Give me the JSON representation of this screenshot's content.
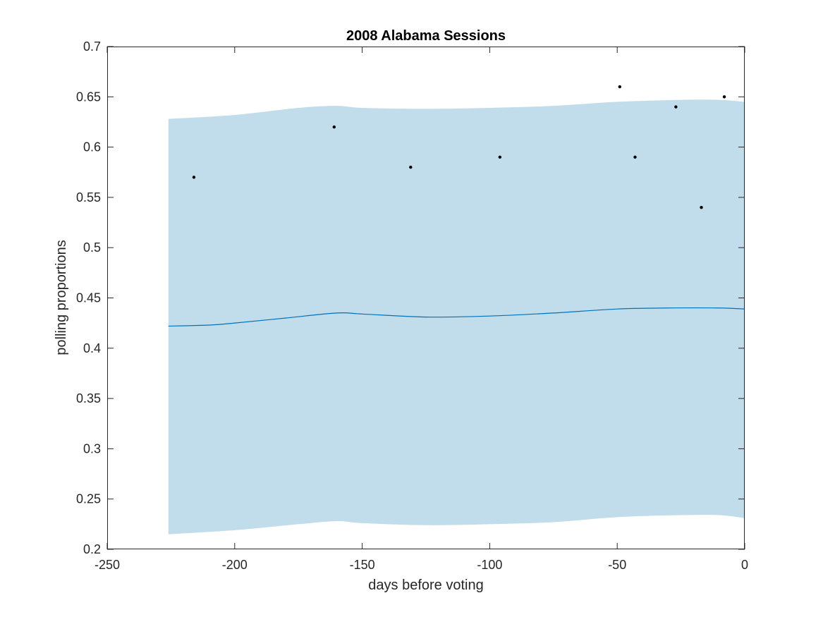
{
  "chart_data": {
    "type": "area",
    "title": "2008 Alabama Sessions",
    "xlabel": "days before voting",
    "ylabel": "polling proportions",
    "xlim": [
      -250,
      0
    ],
    "ylim": [
      0.2,
      0.7
    ],
    "xticks": [
      -250,
      -200,
      -150,
      -100,
      -50,
      0
    ],
    "xtick_labels": [
      "-250",
      "-200",
      "-150",
      "-100",
      "-50",
      "0"
    ],
    "yticks": [
      0.2,
      0.25,
      0.3,
      0.35,
      0.4,
      0.45,
      0.5,
      0.55,
      0.6,
      0.65,
      0.7
    ],
    "ytick_labels": [
      "0.2",
      "0.25",
      "0.3",
      "0.35",
      "0.4",
      "0.45",
      "0.5",
      "0.55",
      "0.6",
      "0.65",
      "0.7"
    ],
    "grid": false,
    "band": {
      "x": [
        -226,
        -200,
        -175,
        -160,
        -150,
        -125,
        -100,
        -75,
        -50,
        -25,
        -10,
        0
      ],
      "upper": [
        0.628,
        0.632,
        0.639,
        0.641,
        0.639,
        0.638,
        0.639,
        0.641,
        0.645,
        0.647,
        0.647,
        0.645
      ],
      "lower": [
        0.215,
        0.219,
        0.225,
        0.228,
        0.226,
        0.224,
        0.225,
        0.227,
        0.232,
        0.234,
        0.234,
        0.231
      ],
      "color": "#c1dcea"
    },
    "series": [
      {
        "type": "line",
        "x": [
          -226,
          -210,
          -200,
          -180,
          -160,
          -150,
          -125,
          -100,
          -75,
          -50,
          -30,
          -10,
          0
        ],
        "values": [
          0.422,
          0.423,
          0.425,
          0.43,
          0.435,
          0.434,
          0.431,
          0.432,
          0.435,
          0.439,
          0.44,
          0.44,
          0.439
        ],
        "color": "#0072bd"
      },
      {
        "type": "scatter",
        "x": [
          -216,
          -161,
          -131,
          -96,
          -49,
          -43,
          -27,
          -17,
          -8
        ],
        "values": [
          0.57,
          0.62,
          0.58,
          0.59,
          0.66,
          0.59,
          0.64,
          0.54,
          0.65
        ],
        "color": "#000000"
      }
    ]
  }
}
